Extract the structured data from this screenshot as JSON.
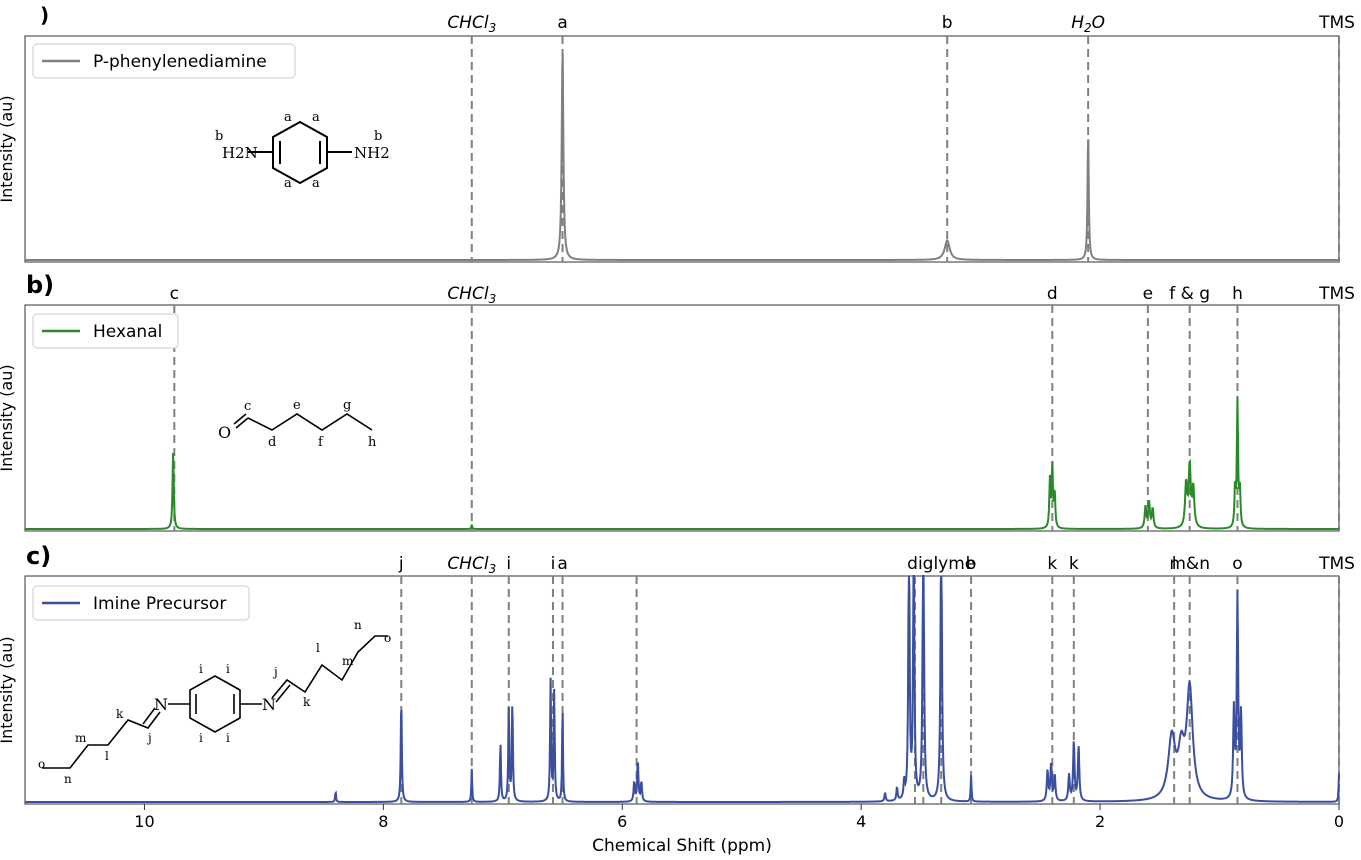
{
  "figure": {
    "xlabel": "Chemical Shift (ppm)",
    "ylabel": "Intensity (au)",
    "xlim": [
      11,
      0
    ],
    "xticks": [
      10,
      8,
      6,
      4,
      2,
      0
    ],
    "xticklabels": [
      "10",
      "8",
      "6",
      "4",
      "2",
      "0"
    ]
  },
  "chart_data": [
    {
      "type": "line",
      "panel_label": ")",
      "legend": "P-phenylenediamine",
      "color": "#808080",
      "xlabel": "",
      "ylabel": "Intensity (au)",
      "xlim": [
        11,
        0
      ],
      "legend_position": "top-left",
      "reference_lines": [
        {
          "x": 7.26,
          "label": "CHCl3",
          "italic": true
        },
        {
          "x": 6.5,
          "label": "a"
        },
        {
          "x": 3.28,
          "label": "b"
        },
        {
          "x": 2.1,
          "label": "H2O",
          "italic": true
        },
        {
          "x": 0.0,
          "label": "TMS"
        }
      ],
      "peaks": [
        {
          "x": 6.5,
          "h": 0.98,
          "w": 0.008
        },
        {
          "x": 3.28,
          "h": 0.09,
          "w": 0.025
        },
        {
          "x": 2.1,
          "h": 0.59,
          "w": 0.006
        }
      ],
      "structure_labels": {
        "left_group": "H2N",
        "right_group": "NH2",
        "ring_h": [
          "a",
          "a",
          "a",
          "a"
        ],
        "amine_h": [
          "b",
          "b"
        ]
      }
    },
    {
      "type": "line",
      "panel_label": "b)",
      "legend": "Hexanal",
      "color": "#2a8a2a",
      "xlabel": "",
      "ylabel": "Intensity (au)",
      "xlim": [
        11,
        0
      ],
      "legend_position": "top-left",
      "reference_lines": [
        {
          "x": 9.75,
          "label": "c"
        },
        {
          "x": 7.26,
          "label": "CHCl3",
          "italic": true
        },
        {
          "x": 2.4,
          "label": "d"
        },
        {
          "x": 1.6,
          "label": "e"
        },
        {
          "x": 1.25,
          "label": "f & g"
        },
        {
          "x": 0.85,
          "label": "h"
        },
        {
          "x": 0.0,
          "label": "TMS"
        }
      ],
      "peaks": [
        {
          "x": 9.76,
          "h": 0.35,
          "w": 0.006
        },
        {
          "x": 7.26,
          "h": 0.02,
          "w": 0.004
        },
        {
          "x": 2.42,
          "h": 0.22,
          "w": 0.006
        },
        {
          "x": 2.4,
          "h": 0.29,
          "w": 0.006
        },
        {
          "x": 2.38,
          "h": 0.16,
          "w": 0.006
        },
        {
          "x": 1.62,
          "h": 0.1,
          "w": 0.008
        },
        {
          "x": 1.59,
          "h": 0.12,
          "w": 0.008
        },
        {
          "x": 1.56,
          "h": 0.09,
          "w": 0.008
        },
        {
          "x": 1.28,
          "h": 0.2,
          "w": 0.01
        },
        {
          "x": 1.25,
          "h": 0.28,
          "w": 0.01
        },
        {
          "x": 1.22,
          "h": 0.18,
          "w": 0.01
        },
        {
          "x": 0.87,
          "h": 0.18,
          "w": 0.006
        },
        {
          "x": 0.85,
          "h": 0.58,
          "w": 0.006
        },
        {
          "x": 0.83,
          "h": 0.17,
          "w": 0.006
        }
      ],
      "structure_labels": {
        "atom": "O",
        "carbons": [
          "c",
          "d",
          "e",
          "f",
          "g",
          "h"
        ]
      }
    },
    {
      "type": "line",
      "panel_label": "c)",
      "legend": "Imine Precursor",
      "color": "#3a4fa0",
      "xlabel": "Chemical Shift (ppm)",
      "ylabel": "Intensity (au)",
      "xlim": [
        11,
        0
      ],
      "legend_position": "top-left",
      "reference_lines": [
        {
          "x": 7.85,
          "label": "j"
        },
        {
          "x": 7.26,
          "label": "CHCl3",
          "italic": true
        },
        {
          "x": 6.95,
          "label": "i"
        },
        {
          "x": 6.58,
          "label": "i"
        },
        {
          "x": 6.5,
          "label": "a"
        },
        {
          "x": 5.88,
          "label": ""
        },
        {
          "x": 3.55,
          "label": ""
        },
        {
          "x": 3.48,
          "label": ""
        },
        {
          "x": 3.33,
          "label": "diglyme"
        },
        {
          "x": 3.08,
          "label": "b"
        },
        {
          "x": 2.4,
          "label": "k"
        },
        {
          "x": 2.22,
          "label": "k"
        },
        {
          "x": 1.38,
          "label": "l"
        },
        {
          "x": 1.25,
          "label": "m&n"
        },
        {
          "x": 0.85,
          "label": "o"
        },
        {
          "x": 0.0,
          "label": "TMS"
        }
      ],
      "peaks": [
        {
          "x": 8.4,
          "h": 0.05,
          "w": 0.004
        },
        {
          "x": 7.85,
          "h": 0.48,
          "w": 0.005
        },
        {
          "x": 7.26,
          "h": 0.15,
          "w": 0.004
        },
        {
          "x": 7.02,
          "h": 0.27,
          "w": 0.005
        },
        {
          "x": 6.95,
          "h": 0.44,
          "w": 0.005
        },
        {
          "x": 6.92,
          "h": 0.46,
          "w": 0.005
        },
        {
          "x": 6.6,
          "h": 0.55,
          "w": 0.005
        },
        {
          "x": 6.57,
          "h": 0.5,
          "w": 0.005
        },
        {
          "x": 6.5,
          "h": 0.46,
          "w": 0.004
        },
        {
          "x": 5.9,
          "h": 0.09,
          "w": 0.006
        },
        {
          "x": 5.87,
          "h": 0.19,
          "w": 0.006
        },
        {
          "x": 5.84,
          "h": 0.09,
          "w": 0.006
        },
        {
          "x": 3.8,
          "h": 0.04,
          "w": 0.006
        },
        {
          "x": 3.7,
          "h": 0.06,
          "w": 0.006
        },
        {
          "x": 3.64,
          "h": 0.08,
          "w": 0.006
        },
        {
          "x": 3.6,
          "h": 1.3,
          "w": 0.006
        },
        {
          "x": 3.56,
          "h": 1.3,
          "w": 0.006
        },
        {
          "x": 3.48,
          "h": 1.3,
          "w": 0.007
        },
        {
          "x": 3.33,
          "h": 1.3,
          "w": 0.007
        },
        {
          "x": 3.08,
          "h": 0.12,
          "w": 0.004
        },
        {
          "x": 2.44,
          "h": 0.14,
          "w": 0.007
        },
        {
          "x": 2.41,
          "h": 0.17,
          "w": 0.007
        },
        {
          "x": 2.38,
          "h": 0.12,
          "w": 0.007
        },
        {
          "x": 2.26,
          "h": 0.12,
          "w": 0.007
        },
        {
          "x": 2.22,
          "h": 0.27,
          "w": 0.007
        },
        {
          "x": 2.18,
          "h": 0.25,
          "w": 0.007
        },
        {
          "x": 1.4,
          "h": 0.28,
          "w": 0.035
        },
        {
          "x": 1.32,
          "h": 0.2,
          "w": 0.03
        },
        {
          "x": 1.25,
          "h": 0.5,
          "w": 0.03
        },
        {
          "x": 0.88,
          "h": 0.4,
          "w": 0.007
        },
        {
          "x": 0.85,
          "h": 0.92,
          "w": 0.007
        },
        {
          "x": 0.82,
          "h": 0.38,
          "w": 0.007
        },
        {
          "x": 0.0,
          "h": 0.13,
          "w": 0.004
        }
      ],
      "structure_labels": {
        "imine_n": [
          "N",
          "N"
        ],
        "ring_h": [
          "i",
          "i",
          "i",
          "i"
        ],
        "chain": [
          "j",
          "k",
          "l",
          "m",
          "n",
          "o"
        ]
      }
    }
  ]
}
